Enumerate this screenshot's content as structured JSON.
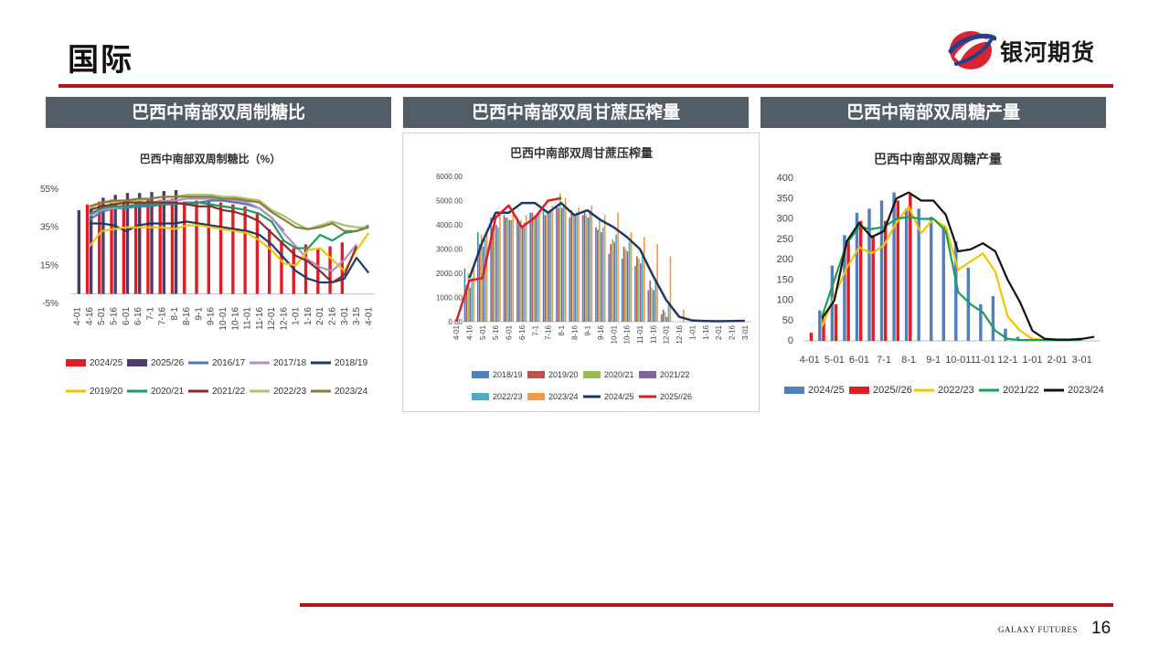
{
  "page": {
    "title": "国际",
    "page_number": "16",
    "footer_brand": "GALAXY FUTURES"
  },
  "logo": {
    "text": "银河期货",
    "icon": "galaxy-futures-logo-icon"
  },
  "colors": {
    "accent": "#b3151b",
    "panel_header": "#525d68"
  },
  "panels": [
    {
      "header": "巴西中南部双周制糖比"
    },
    {
      "header": "巴西中南部双周甘蔗压榨量"
    },
    {
      "header": "巴西中南部双周糖产量"
    }
  ],
  "chart_data": [
    {
      "type": "bar",
      "title": "巴西中南部双周制糖比（%）",
      "unit": "%",
      "categories": [
        "4-01",
        "4-16",
        "5-01",
        "5-16",
        "6-01",
        "6-16",
        "7-01",
        "7-16",
        "8-01",
        "8-16",
        "9-01",
        "9-16",
        "10-01",
        "10-16",
        "11-01",
        "11-16",
        "12-01",
        "12-16",
        "1-01",
        "1-16",
        "2-01",
        "2-16",
        "3-01",
        "3-15",
        "4-01"
      ],
      "xtick_labels": [
        "4-01",
        "4-16",
        "5-01",
        "5-16",
        "6-01",
        "6-16",
        "7-1",
        "7-16",
        "8-1",
        "8-16",
        "9-1",
        "9-16",
        "10-01",
        "10-16",
        "11-01",
        "11-16",
        "12-01",
        "12-16",
        "1-01",
        "1-16",
        "2-01",
        "2-16",
        "3-01",
        "3-15",
        "4-01"
      ],
      "ylim": [
        -5,
        55
      ],
      "yticks": [
        "55%",
        "35%",
        "15%",
        "-5%"
      ],
      "ytick_values": [
        55,
        35,
        15,
        -5
      ],
      "legend": [
        "2024/25",
        "2025/26",
        "2016/17",
        "2017/18",
        "2018/19",
        "2019/20",
        "2020/21",
        "2021/22",
        "2022/23",
        "2023/24"
      ],
      "series": [
        {
          "name": "2024/25",
          "chart": "bar",
          "color": "#e31b23",
          "values": [
            null,
            47,
            48.5,
            49.5,
            49,
            50,
            49.5,
            49.5,
            50,
            48.5,
            49,
            48.5,
            48,
            47,
            46,
            43,
            34,
            28,
            24,
            26,
            24,
            25,
            27,
            null,
            null
          ]
        },
        {
          "name": "2025/26",
          "chart": "bar",
          "color": "#4a3d6b",
          "values": [
            44,
            45.5,
            50.5,
            52,
            53,
            53,
            53.5,
            54,
            54.5,
            null,
            null,
            null,
            null,
            null,
            null,
            null,
            null,
            null,
            null,
            null,
            null,
            null,
            null,
            null,
            null
          ]
        },
        {
          "name": "2016/17",
          "chart": "line",
          "color": "#4a78c0",
          "values": [
            null,
            39,
            43,
            45,
            45,
            46,
            46,
            47,
            47,
            48,
            48,
            49,
            49,
            48,
            47,
            45,
            40,
            33,
            null,
            null,
            null,
            null,
            null,
            null,
            null
          ]
        },
        {
          "name": "2017/18",
          "chart": "line",
          "color": "#b48cc8",
          "values": [
            null,
            41,
            44,
            45,
            46,
            47,
            48,
            49,
            49,
            50,
            50,
            50,
            50,
            49,
            48,
            45,
            40,
            32,
            25,
            18,
            14,
            12,
            18,
            26,
            null
          ]
        },
        {
          "name": "2018/19",
          "chart": "line",
          "color": "#1f3864",
          "values": [
            null,
            37,
            37,
            36,
            33,
            36,
            37,
            37,
            37,
            38,
            37,
            36,
            35,
            34,
            33,
            31,
            26,
            19,
            12,
            8,
            6,
            6,
            8,
            19,
            11
          ]
        },
        {
          "name": "2019/20",
          "chart": "line",
          "color": "#f5c400",
          "values": [
            null,
            25,
            33,
            34,
            35,
            35,
            35,
            35,
            34,
            36,
            36,
            35,
            34,
            33,
            32,
            28,
            23,
            16,
            15,
            23,
            24,
            18,
            12,
            23,
            32
          ]
        },
        {
          "name": "2020/21",
          "chart": "line",
          "color": "#1a9e5a",
          "values": [
            null,
            42,
            45,
            46,
            46,
            47,
            47,
            47,
            48,
            47,
            48,
            47,
            46,
            45,
            44,
            42,
            38,
            28,
            24,
            24,
            31,
            28,
            32,
            33,
            36
          ]
        },
        {
          "name": "2021/22",
          "chart": "line",
          "color": "#8b2a2a",
          "values": [
            null,
            44,
            46,
            47,
            48,
            48,
            48,
            48,
            48,
            47,
            46,
            46,
            44,
            43,
            41,
            38,
            32,
            26,
            20,
            17,
            12,
            6,
            10,
            25,
            null
          ]
        },
        {
          "name": "2022/23",
          "chart": "line",
          "color": "#a6c46a",
          "values": [
            null,
            45,
            48,
            48,
            49,
            49,
            50,
            51,
            51,
            52,
            52,
            52,
            51,
            51,
            50,
            49,
            44,
            41,
            37,
            34,
            36,
            38,
            36,
            35,
            35
          ]
        },
        {
          "name": "2023/24",
          "chart": "line",
          "color": "#8c7a3c",
          "values": [
            null,
            46,
            48,
            49,
            49,
            50,
            50,
            51,
            51,
            51,
            51,
            51,
            50,
            50,
            49,
            48,
            43,
            39,
            35,
            34,
            35,
            37,
            33,
            33,
            35
          ]
        }
      ]
    },
    {
      "type": "bar",
      "title": "巴西中南部双周甘蔗压榨量",
      "categories": [
        "4-01",
        "4-16",
        "5-01",
        "5-16",
        "6-01",
        "6-16",
        "7-01",
        "7-16",
        "8-01",
        "8-16",
        "9-01",
        "9-16",
        "10-01",
        "10-16",
        "11-01",
        "11-16",
        "12-01",
        "12-16",
        "1-01",
        "1-16",
        "2-01",
        "2-16",
        "3-01"
      ],
      "xtick_labels": [
        "4-01",
        "4-16",
        "5-01",
        "5-16",
        "6-01",
        "6-16",
        "7-1",
        "7-16",
        "8-1",
        "8-16",
        "9-1",
        "9-16",
        "10-01",
        "10-16",
        "11-01",
        "11-16",
        "12-01",
        "12-16",
        "1-01",
        "1-16",
        "2-01",
        "2-16",
        "3-01"
      ],
      "ylim": [
        0,
        6000
      ],
      "yticks": [
        "6000.00",
        "5000.00",
        "4000.00",
        "3000.00",
        "2000.00",
        "1000.00",
        "0.00"
      ],
      "ytick_values": [
        6000,
        5000,
        4000,
        3000,
        2000,
        1000,
        0
      ],
      "legend": [
        "2018/19",
        "2019/20",
        "2020/21",
        "2021/22",
        "2022/23",
        "2023/24",
        "2024/25",
        "2025//26"
      ],
      "series": [
        {
          "name": "2018/19",
          "chart": "bar",
          "color": "#4f81bd",
          "values": [
            null,
            2200,
            3700,
            4300,
            4400,
            4300,
            4500,
            4600,
            4800,
            4300,
            4400,
            3900,
            2800,
            2600,
            2300,
            1300,
            300,
            null,
            null,
            null,
            null,
            null,
            null
          ]
        },
        {
          "name": "2019/20",
          "chart": "bar",
          "color": "#c0504d",
          "values": [
            null,
            1500,
            3200,
            3900,
            4300,
            4100,
            4500,
            4400,
            4700,
            4600,
            4500,
            3800,
            3200,
            3100,
            2700,
            1700,
            500,
            null,
            null,
            null,
            null,
            null,
            null
          ]
        },
        {
          "name": "2020/21",
          "chart": "bar",
          "color": "#9bbb59",
          "values": [
            null,
            2000,
            3600,
            4400,
            4300,
            4200,
            4400,
            4500,
            5300,
            4500,
            4400,
            4200,
            3400,
            3000,
            2600,
            1400,
            400,
            null,
            null,
            null,
            null,
            null,
            null
          ]
        },
        {
          "name": "2021/22",
          "chart": "bar",
          "color": "#8064a2",
          "values": [
            null,
            1400,
            3100,
            4000,
            4200,
            3900,
            4300,
            4500,
            4700,
            4400,
            4300,
            3700,
            3300,
            2900,
            2400,
            1300,
            200,
            null,
            null,
            null,
            null,
            null,
            null
          ]
        },
        {
          "name": "2022/23",
          "chart": "bar",
          "color": "#4bacc6",
          "values": [
            null,
            1800,
            3400,
            3900,
            4200,
            4100,
            4400,
            4600,
            4800,
            4500,
            4600,
            3900,
            3600,
            3300,
            2900,
            1700,
            700,
            null,
            null,
            null,
            null,
            null,
            null
          ]
        },
        {
          "name": "2023/24",
          "chart": "bar",
          "color": "#f79646",
          "values": [
            null,
            2300,
            3700,
            4500,
            4600,
            4400,
            4600,
            4800,
            5100,
            4700,
            4800,
            4400,
            4500,
            3700,
            3500,
            3200,
            2700,
            500,
            null,
            null,
            null,
            null,
            null
          ]
        },
        {
          "name": "2024/25",
          "chart": "line",
          "color": "#1f3864",
          "values": [
            null,
            1800,
            3300,
            4500,
            4500,
            4900,
            4900,
            4500,
            4900,
            4400,
            4600,
            4200,
            3900,
            3500,
            3000,
            1900,
            900,
            200,
            50,
            30,
            20,
            30,
            40
          ]
        },
        {
          "name": "2025//26",
          "chart": "line",
          "color": "#e31b23",
          "values": [
            0,
            1700,
            1800,
            4300,
            4800,
            3900,
            4300,
            5000,
            5100,
            null,
            null,
            null,
            null,
            null,
            null,
            null,
            null,
            null,
            null,
            null,
            null,
            null,
            null
          ]
        }
      ]
    },
    {
      "type": "bar",
      "title": "巴西中南部双周糖产量",
      "categories": [
        "4-01",
        "4-16",
        "5-01",
        "5-16",
        "6-01",
        "6-16",
        "7-01",
        "7-16",
        "8-01",
        "8-16",
        "9-01",
        "9-16",
        "10-01",
        "10-16",
        "11-01",
        "11-16",
        "12-01",
        "12-16",
        "1-01",
        "1-16",
        "2-01",
        "2-16",
        "3-01",
        "3-16"
      ],
      "xtick_labels": [
        "4-01",
        "5-01",
        "6-01",
        "7-1",
        "8-1",
        "9-1",
        "10-01",
        "11-01",
        "12-1",
        "1-01",
        "2-01",
        "3-01"
      ],
      "ylim": [
        0,
        400
      ],
      "yticks": [
        "400",
        "350",
        "300",
        "250",
        "200",
        "150",
        "100",
        "50",
        "0"
      ],
      "ytick_values": [
        400,
        350,
        300,
        250,
        200,
        150,
        100,
        50,
        0
      ],
      "legend": [
        "2024/25",
        "2025//26",
        "2022/23",
        "2021/22",
        "2023/24"
      ],
      "series": [
        {
          "name": "2024/25",
          "chart": "bar",
          "color": "#4f81bd",
          "values": [
            null,
            75,
            185,
            260,
            315,
            325,
            345,
            365,
            325,
            325,
            305,
            285,
            245,
            180,
            90,
            110,
            30,
            10,
            5,
            null,
            null,
            null,
            null,
            null
          ]
        },
        {
          "name": "2025//26",
          "chart": "bar",
          "color": "#e31b23",
          "values": [
            20,
            55,
            90,
            245,
            295,
            260,
            295,
            345,
            360,
            null,
            null,
            null,
            null,
            null,
            null,
            null,
            null,
            null,
            null,
            null,
            null,
            null,
            null,
            null
          ]
        },
        {
          "name": "2022/23",
          "chart": "line",
          "color": "#f5c400",
          "values": [
            null,
            35,
            110,
            180,
            230,
            215,
            235,
            290,
            330,
            265,
            300,
            280,
            175,
            195,
            215,
            170,
            60,
            25,
            5,
            2,
            2,
            2,
            3,
            null
          ]
        },
        {
          "name": "2021/22",
          "chart": "line",
          "color": "#1a9e5a",
          "values": [
            null,
            60,
            150,
            240,
            280,
            275,
            280,
            300,
            305,
            300,
            300,
            270,
            120,
            90,
            70,
            25,
            5,
            2,
            2,
            2,
            2,
            2,
            3,
            null
          ]
        },
        {
          "name": "2023/24",
          "chart": "line",
          "color": "#111111",
          "values": [
            null,
            55,
            100,
            245,
            290,
            255,
            270,
            350,
            365,
            345,
            345,
            310,
            220,
            225,
            240,
            220,
            150,
            95,
            25,
            5,
            3,
            3,
            5,
            10
          ]
        }
      ]
    }
  ]
}
